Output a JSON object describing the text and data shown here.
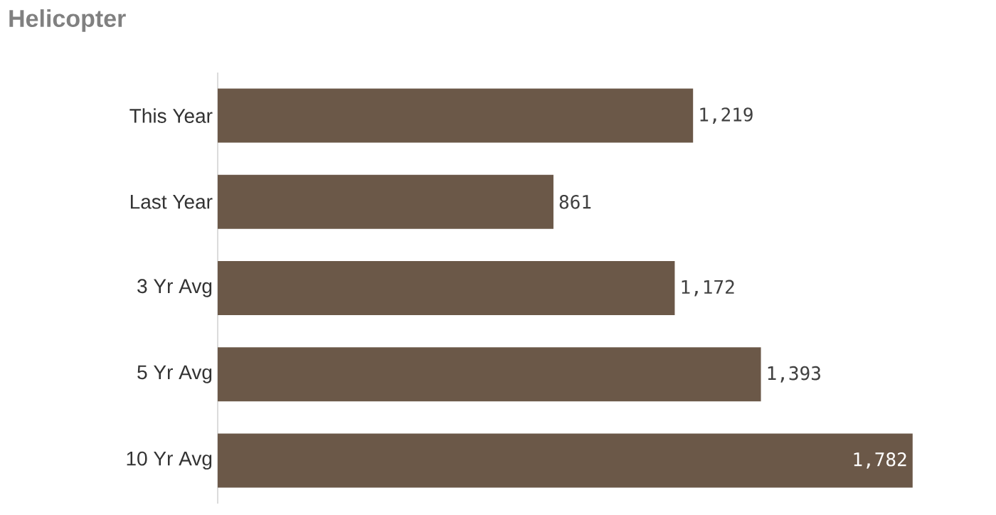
{
  "chart_data": {
    "type": "bar",
    "orientation": "horizontal",
    "title": "Helicopter",
    "categories": [
      "This Year",
      "Last Year",
      "3 Yr Avg",
      "5 Yr Avg",
      "10 Yr Avg"
    ],
    "values": [
      1219,
      861,
      1172,
      1393,
      1782
    ],
    "color": "#6b5848",
    "value_labels": [
      "1,219",
      "861",
      "1,172",
      "1,393",
      "1,782"
    ]
  }
}
